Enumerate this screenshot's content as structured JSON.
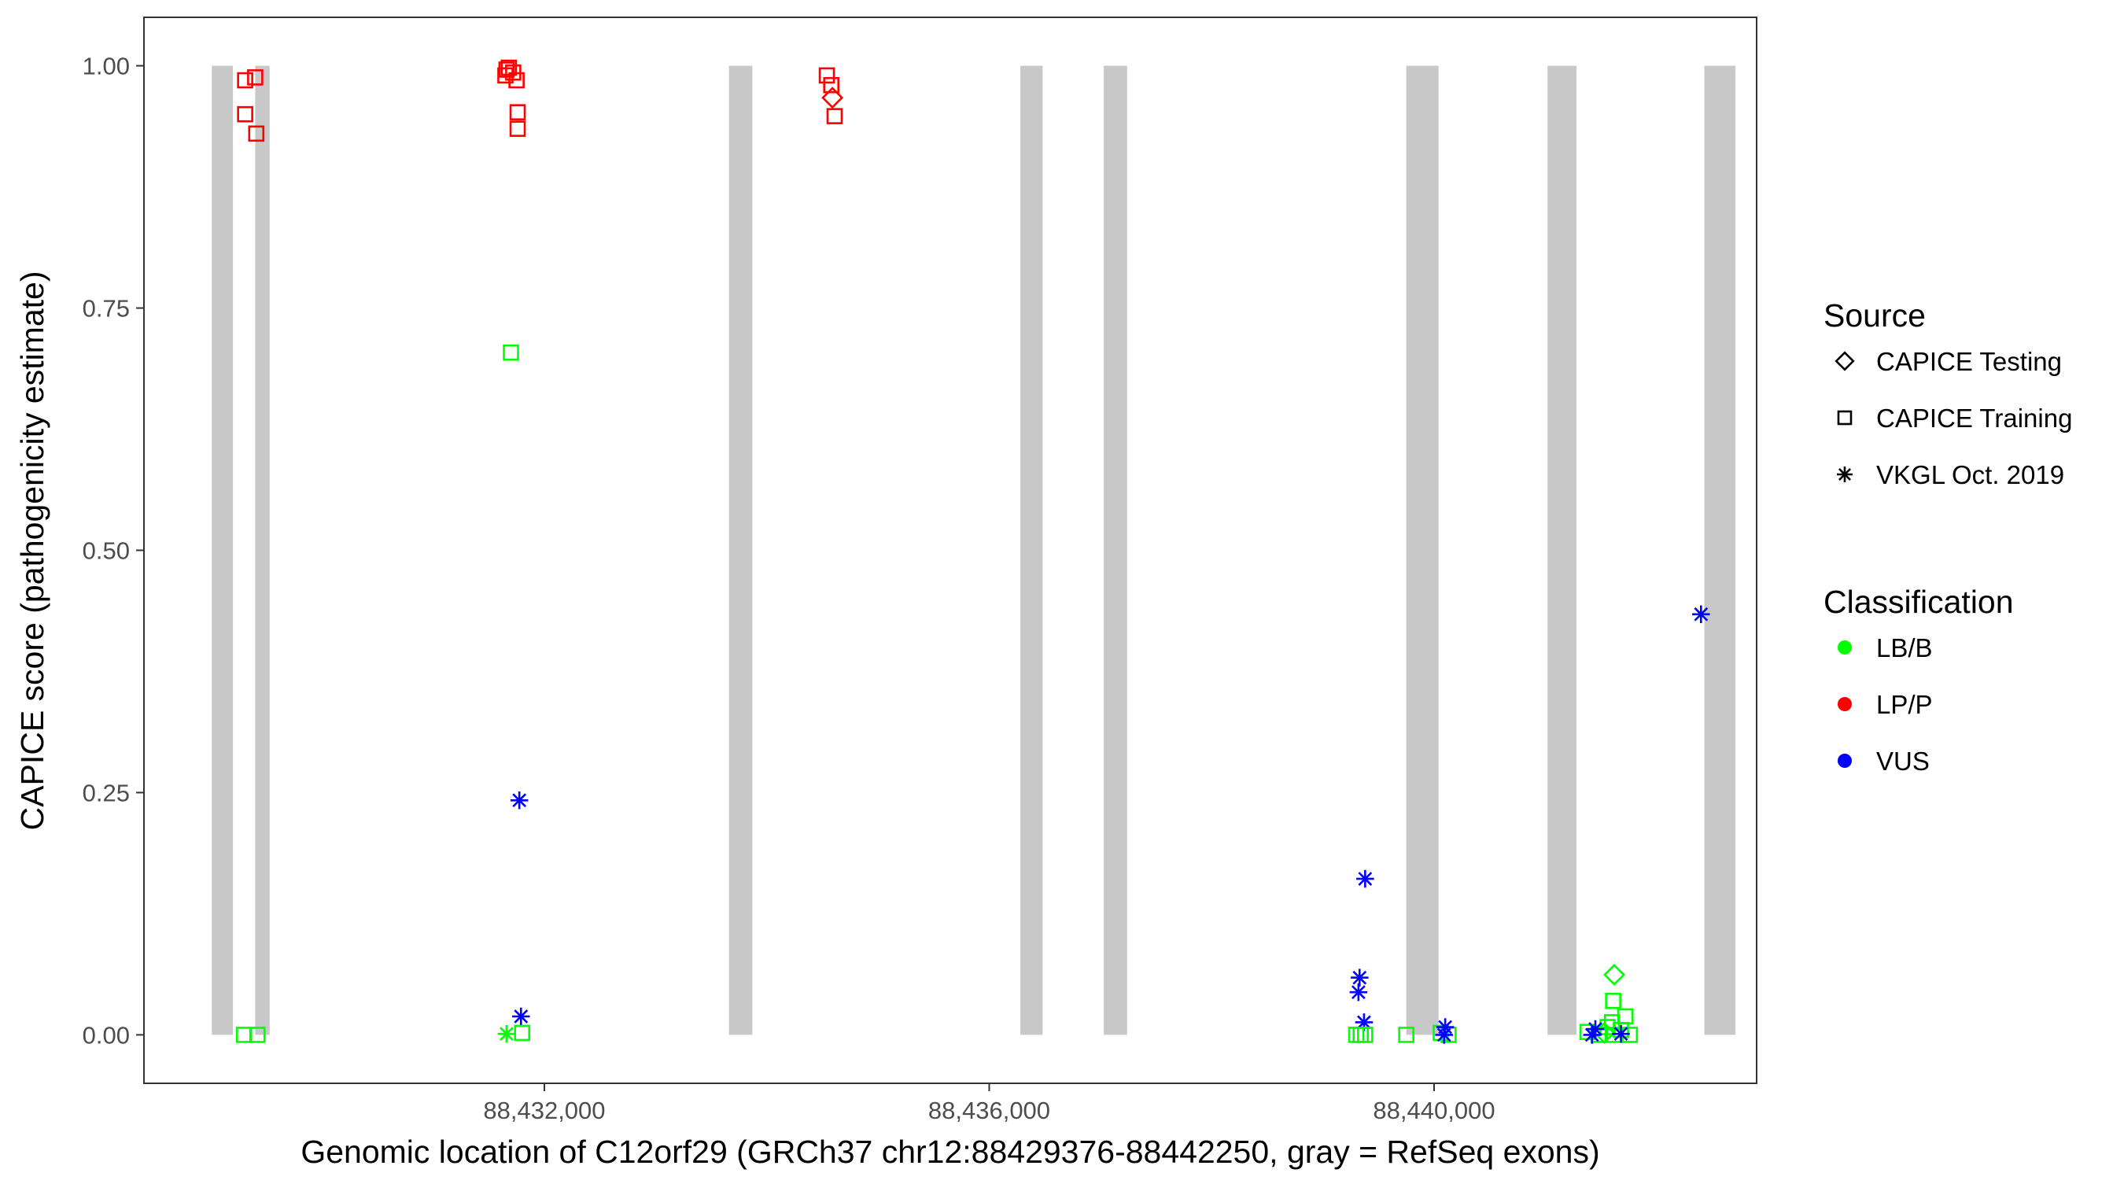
{
  "chart_data": {
    "type": "scatter",
    "title": "",
    "xlabel": "Genomic location of C12orf29 (GRCh37 chr12:88429376-88442250, gray = RefSeq exons)",
    "ylabel": "CAPICE score (pathogenicity estimate)",
    "xlim": [
      88428400,
      88442900
    ],
    "ylim": [
      -0.05,
      1.05
    ],
    "x_ticks": [
      88432000,
      88436000,
      88440000
    ],
    "x_tick_labels": [
      "88,432,000",
      "88,436,000",
      "88,440,000"
    ],
    "y_ticks": [
      0.0,
      0.25,
      0.5,
      0.75,
      1.0
    ],
    "y_tick_labels": [
      "0.00",
      "0.25",
      "0.50",
      "0.75",
      "1.00"
    ],
    "grid": false,
    "exons": [
      [
        88429010,
        88429200
      ],
      [
        88429400,
        88429530
      ],
      [
        88433660,
        88433870
      ],
      [
        88436280,
        88436480
      ],
      [
        88437030,
        88437240
      ],
      [
        88439750,
        88440040
      ],
      [
        88441020,
        88441280
      ],
      [
        88442430,
        88442710
      ]
    ],
    "colors": {
      "LB/B": "#00ff00",
      "LP/P": "#ff0000",
      "VUS": "#0000ff",
      "exon": "#c8c8c8"
    },
    "legend": {
      "position": "right",
      "source_title": "Source",
      "source_items": [
        {
          "label": "CAPICE Testing",
          "shape": "diamond"
        },
        {
          "label": "CAPICE Training",
          "shape": "square"
        },
        {
          "label": "VKGL Oct. 2019",
          "shape": "asterisk"
        }
      ],
      "class_title": "Classification",
      "class_items": [
        {
          "label": "LB/B",
          "color": "#00ff00"
        },
        {
          "label": "LP/P",
          "color": "#ff0000"
        },
        {
          "label": "VUS",
          "color": "#0000ff"
        }
      ]
    },
    "points": [
      {
        "x": 88429310,
        "y": 0.985,
        "src": "square",
        "cls": "LP/P"
      },
      {
        "x": 88429400,
        "y": 0.988,
        "src": "square",
        "cls": "LP/P"
      },
      {
        "x": 88429310,
        "y": 0.95,
        "src": "square",
        "cls": "LP/P"
      },
      {
        "x": 88429410,
        "y": 0.93,
        "src": "square",
        "cls": "LP/P"
      },
      {
        "x": 88429300,
        "y": 0.0,
        "src": "square",
        "cls": "LB/B"
      },
      {
        "x": 88429420,
        "y": 0.0,
        "src": "square",
        "cls": "LB/B"
      },
      {
        "x": 88431660,
        "y": 0.996,
        "src": "square",
        "cls": "LP/P"
      },
      {
        "x": 88431680,
        "y": 0.998,
        "src": "square",
        "cls": "LP/P"
      },
      {
        "x": 88431650,
        "y": 0.99,
        "src": "square",
        "cls": "LP/P"
      },
      {
        "x": 88431720,
        "y": 0.993,
        "src": "square",
        "cls": "LP/P"
      },
      {
        "x": 88431750,
        "y": 0.985,
        "src": "square",
        "cls": "LP/P"
      },
      {
        "x": 88431760,
        "y": 0.952,
        "src": "square",
        "cls": "LP/P"
      },
      {
        "x": 88431760,
        "y": 0.935,
        "src": "square",
        "cls": "LP/P"
      },
      {
        "x": 88431700,
        "y": 0.704,
        "src": "square",
        "cls": "LB/B"
      },
      {
        "x": 88431775,
        "y": 0.242,
        "src": "asterisk",
        "cls": "VUS"
      },
      {
        "x": 88431790,
        "y": 0.019,
        "src": "asterisk",
        "cls": "VUS"
      },
      {
        "x": 88431660,
        "y": 0.001,
        "src": "asterisk",
        "cls": "LB/B"
      },
      {
        "x": 88431800,
        "y": 0.002,
        "src": "square",
        "cls": "LB/B"
      },
      {
        "x": 88434540,
        "y": 0.99,
        "src": "square",
        "cls": "LP/P"
      },
      {
        "x": 88434580,
        "y": 0.98,
        "src": "square",
        "cls": "LP/P"
      },
      {
        "x": 88434590,
        "y": 0.967,
        "src": "diamond",
        "cls": "LP/P"
      },
      {
        "x": 88434610,
        "y": 0.948,
        "src": "square",
        "cls": "LP/P"
      },
      {
        "x": 88439380,
        "y": 0.161,
        "src": "asterisk",
        "cls": "VUS"
      },
      {
        "x": 88439330,
        "y": 0.059,
        "src": "asterisk",
        "cls": "VUS"
      },
      {
        "x": 88439320,
        "y": 0.044,
        "src": "asterisk",
        "cls": "VUS"
      },
      {
        "x": 88439370,
        "y": 0.013,
        "src": "asterisk",
        "cls": "VUS"
      },
      {
        "x": 88439300,
        "y": 0.0,
        "src": "square",
        "cls": "LB/B"
      },
      {
        "x": 88439340,
        "y": 0.0,
        "src": "square",
        "cls": "LB/B"
      },
      {
        "x": 88439380,
        "y": 0.0,
        "src": "square",
        "cls": "LB/B"
      },
      {
        "x": 88439750,
        "y": 0.0,
        "src": "square",
        "cls": "LB/B"
      },
      {
        "x": 88440060,
        "y": 0.002,
        "src": "square",
        "cls": "LB/B"
      },
      {
        "x": 88440130,
        "y": 0.0,
        "src": "square",
        "cls": "LB/B"
      },
      {
        "x": 88440100,
        "y": 0.008,
        "src": "asterisk",
        "cls": "VUS"
      },
      {
        "x": 88440090,
        "y": 0.0,
        "src": "asterisk",
        "cls": "VUS"
      },
      {
        "x": 88441380,
        "y": 0.003,
        "src": "square",
        "cls": "LB/B"
      },
      {
        "x": 88441480,
        "y": 0.0,
        "src": "square",
        "cls": "LB/B"
      },
      {
        "x": 88441560,
        "y": 0.008,
        "src": "square",
        "cls": "LB/B"
      },
      {
        "x": 88441600,
        "y": 0.013,
        "src": "square",
        "cls": "LB/B"
      },
      {
        "x": 88441620,
        "y": 0.0,
        "src": "square",
        "cls": "LB/B"
      },
      {
        "x": 88441680,
        "y": 0.005,
        "src": "square",
        "cls": "LB/B"
      },
      {
        "x": 88441720,
        "y": 0.019,
        "src": "square",
        "cls": "LB/B"
      },
      {
        "x": 88441760,
        "y": 0.0,
        "src": "square",
        "cls": "LB/B"
      },
      {
        "x": 88441610,
        "y": 0.035,
        "src": "square",
        "cls": "LB/B"
      },
      {
        "x": 88441620,
        "y": 0.062,
        "src": "diamond",
        "cls": "LB/B"
      },
      {
        "x": 88441530,
        "y": 0.002,
        "src": "diamond",
        "cls": "LB/B"
      },
      {
        "x": 88441450,
        "y": 0.006,
        "src": "asterisk",
        "cls": "VUS"
      },
      {
        "x": 88441420,
        "y": 0.0,
        "src": "asterisk",
        "cls": "VUS"
      },
      {
        "x": 88441680,
        "y": 0.001,
        "src": "asterisk",
        "cls": "VUS"
      },
      {
        "x": 88442400,
        "y": 0.434,
        "src": "asterisk",
        "cls": "VUS"
      }
    ]
  }
}
